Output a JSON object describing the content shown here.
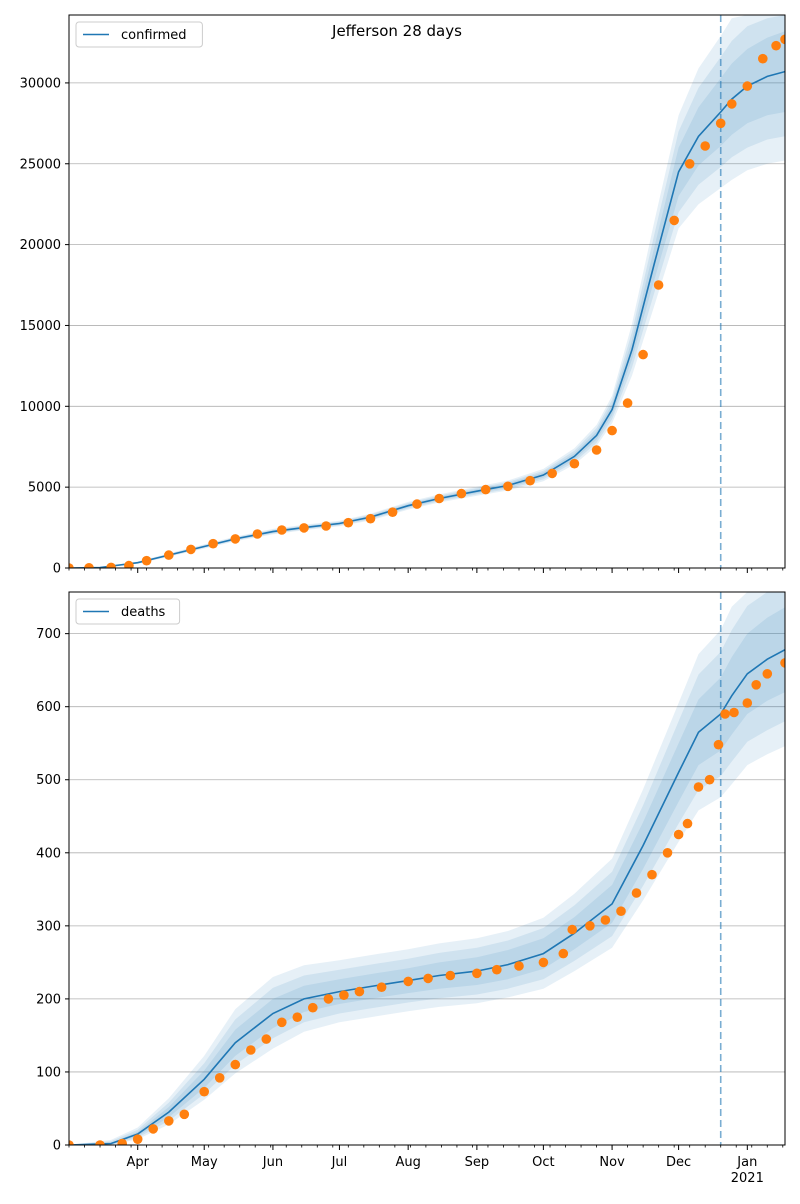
{
  "figure": {
    "title": "Jefferson 28 days"
  },
  "style": {
    "model_color": "#1f77b4",
    "observed_color": "#ff7f0e",
    "band_color": "#1f77b4",
    "forecast_line_color": "#1f77b4",
    "grid_color": "#b0b0b0"
  },
  "chart_data": [
    {
      "type": "line",
      "name": "confirmed",
      "legend": "confirmed",
      "legend_placement": "top-left",
      "ylim": [
        0,
        34200
      ],
      "yticks": [
        0,
        5000,
        10000,
        15000,
        20000,
        25000,
        30000
      ],
      "ytick_labels": [
        "0",
        "5000",
        "10000",
        "15000",
        "20000",
        "25000",
        "30000"
      ],
      "grid": "y",
      "forecast_start": "2020-12-20",
      "model": {
        "x": [
          "2020-03-01",
          "2020-03-15",
          "2020-04-01",
          "2020-04-15",
          "2020-05-01",
          "2020-05-15",
          "2020-06-01",
          "2020-06-15",
          "2020-07-01",
          "2020-07-15",
          "2020-08-01",
          "2020-08-15",
          "2020-09-01",
          "2020-09-15",
          "2020-10-01",
          "2020-10-15",
          "2020-10-25",
          "2020-11-01",
          "2020-11-10",
          "2020-11-20",
          "2020-12-01",
          "2020-12-10",
          "2020-12-20",
          "2020-12-25",
          "2021-01-01",
          "2021-01-10",
          "2021-01-18"
        ],
        "y": [
          0,
          30,
          330,
          800,
          1330,
          1800,
          2250,
          2500,
          2750,
          3150,
          3850,
          4300,
          4750,
          5100,
          5750,
          6900,
          8200,
          9800,
          13500,
          18800,
          24500,
          26700,
          28200,
          29000,
          29800,
          30400,
          30700
        ],
        "bands": [
          {
            "lower": [
              0,
              25,
              300,
              760,
              1280,
              1740,
              2180,
              2430,
              2680,
              3060,
              3750,
              4190,
              4630,
              4970,
              5590,
              6700,
              7950,
              9450,
              12900,
              17800,
              23000,
              24900,
              26100,
              26800,
              27500,
              28000,
              28200
            ],
            "upper": [
              0,
              35,
              360,
              840,
              1380,
              1860,
              2320,
              2570,
              2820,
              3240,
              3950,
              4410,
              4870,
              5230,
              5910,
              7100,
              8450,
              10150,
              14100,
              19800,
              26000,
              28500,
              30300,
              31200,
              32100,
              32800,
              33200
            ]
          },
          {
            "lower": [
              0,
              22,
              280,
              730,
              1240,
              1700,
              2130,
              2380,
              2630,
              3000,
              3680,
              4120,
              4550,
              4880,
              5480,
              6550,
              7750,
              9200,
              12400,
              17000,
              22000,
              23700,
              24800,
              25400,
              26000,
              26500,
              26700
            ],
            "upper": [
              0,
              38,
              380,
              870,
              1420,
              1900,
              2370,
              2620,
              2870,
              3300,
              4020,
              4480,
              4950,
              5320,
              6020,
              7250,
              8650,
              10400,
              14600,
              20600,
              27000,
              29700,
              31600,
              32600,
              33500,
              34000,
              34200
            ]
          },
          {
            "lower": [
              0,
              20,
              260,
              700,
              1200,
              1660,
              2080,
              2330,
              2580,
              2940,
              3610,
              4050,
              4470,
              4790,
              5370,
              6400,
              7550,
              8950,
              11900,
              16200,
              21000,
              22500,
              23500,
              24000,
              24600,
              25000,
              25200
            ],
            "upper": [
              0,
              40,
              400,
              900,
              1460,
              1940,
              2420,
              2670,
              2920,
              3360,
              4090,
              4550,
              5030,
              5410,
              6130,
              7400,
              8850,
              10650,
              15100,
              21400,
              28000,
              30900,
              32900,
              34000,
              34200,
              34200,
              34200
            ]
          }
        ]
      },
      "observed": {
        "x": [
          "2020-03-01",
          "2020-03-10",
          "2020-03-20",
          "2020-03-28",
          "2020-04-05",
          "2020-04-15",
          "2020-04-25",
          "2020-05-05",
          "2020-05-15",
          "2020-05-25",
          "2020-06-05",
          "2020-06-15",
          "2020-06-25",
          "2020-07-05",
          "2020-07-15",
          "2020-07-25",
          "2020-08-05",
          "2020-08-15",
          "2020-08-25",
          "2020-09-05",
          "2020-09-15",
          "2020-09-25",
          "2020-10-05",
          "2020-10-15",
          "2020-10-25",
          "2020-11-01",
          "2020-11-08",
          "2020-11-15",
          "2020-11-22",
          "2020-11-29",
          "2020-12-06",
          "2020-12-13",
          "2020-12-20",
          "2020-12-25",
          "2021-01-01",
          "2021-01-08",
          "2021-01-14",
          "2021-01-18"
        ],
        "y": [
          0,
          10,
          40,
          150,
          450,
          800,
          1150,
          1500,
          1800,
          2100,
          2350,
          2480,
          2600,
          2800,
          3050,
          3450,
          3950,
          4300,
          4600,
          4850,
          5050,
          5400,
          5850,
          6450,
          7300,
          8500,
          10200,
          13200,
          17500,
          21500,
          25000,
          26100,
          27500,
          28700,
          29800,
          31500,
          32300,
          32700
        ]
      }
    },
    {
      "type": "line",
      "name": "deaths",
      "legend": "deaths",
      "legend_placement": "top-left",
      "ylim": [
        0,
        757
      ],
      "yticks": [
        0,
        100,
        200,
        300,
        400,
        500,
        600,
        700
      ],
      "ytick_labels": [
        "0",
        "100",
        "200",
        "300",
        "400",
        "500",
        "600",
        "700"
      ],
      "grid": "y",
      "forecast_start": "2020-12-20",
      "xtick_labels": [
        {
          "date": "2020-04-01",
          "label": "Apr"
        },
        {
          "date": "2020-05-01",
          "label": "May"
        },
        {
          "date": "2020-06-01",
          "label": "Jun"
        },
        {
          "date": "2020-07-01",
          "label": "Jul"
        },
        {
          "date": "2020-08-01",
          "label": "Aug"
        },
        {
          "date": "2020-09-01",
          "label": "Sep"
        },
        {
          "date": "2020-10-01",
          "label": "Oct"
        },
        {
          "date": "2020-11-01",
          "label": "Nov"
        },
        {
          "date": "2020-12-01",
          "label": "Dec"
        },
        {
          "date": "2021-01-01",
          "label": "Jan"
        }
      ],
      "year_label": {
        "date": "2021-01-01",
        "label": "2021"
      },
      "model": {
        "x": [
          "2020-03-01",
          "2020-03-20",
          "2020-04-01",
          "2020-04-15",
          "2020-05-01",
          "2020-05-15",
          "2020-06-01",
          "2020-06-15",
          "2020-07-01",
          "2020-07-15",
          "2020-08-01",
          "2020-08-15",
          "2020-09-01",
          "2020-09-15",
          "2020-10-01",
          "2020-10-15",
          "2020-11-01",
          "2020-11-15",
          "2020-12-01",
          "2020-12-10",
          "2020-12-20",
          "2020-12-25",
          "2021-01-01",
          "2021-01-10",
          "2021-01-18"
        ],
        "y": [
          0,
          2,
          15,
          45,
          90,
          140,
          180,
          200,
          210,
          217,
          225,
          232,
          238,
          247,
          262,
          290,
          330,
          410,
          510,
          565,
          590,
          615,
          645,
          665,
          678
        ],
        "bands": [
          {
            "lower": [
              0,
              1,
              12,
              38,
              78,
              122,
              160,
              182,
              193,
              200,
              208,
              214,
              219,
              227,
              241,
              268,
              304,
              378,
              470,
              520,
              540,
              562,
              590,
              608,
              620
            ],
            "upper": [
              0,
              3,
              18,
              52,
              102,
              158,
              200,
              218,
              227,
              234,
              242,
              250,
              257,
              267,
              283,
              312,
              356,
              442,
              550,
              610,
              640,
              668,
              700,
              722,
              736
            ]
          },
          {
            "lower": [
              0,
              0,
              10,
              33,
              70,
              110,
              146,
              168,
              180,
              187,
              195,
              201,
              206,
              214,
              227,
              252,
              286,
              355,
              440,
              486,
              505,
              525,
              552,
              568,
              580
            ],
            "upper": [
              0,
              5,
              21,
              58,
              112,
              172,
              215,
              232,
              240,
              247,
              255,
              263,
              270,
              280,
              297,
              328,
              374,
              465,
              580,
              644,
              675,
              705,
              738,
              757,
              757
            ]
          },
          {
            "lower": [
              0,
              0,
              8,
              28,
              62,
              98,
              132,
              155,
              168,
              175,
              183,
              189,
              194,
              202,
              214,
              238,
              270,
              335,
              415,
              458,
              476,
              494,
              520,
              535,
              546
            ],
            "upper": [
              0,
              7,
              24,
              64,
              122,
              186,
              230,
              246,
              253,
              260,
              268,
              276,
              283,
              293,
              311,
              344,
              392,
              487,
              605,
              672,
              705,
              737,
              757,
              757,
              757
            ]
          }
        ]
      },
      "observed": {
        "x": [
          "2020-03-01",
          "2020-03-15",
          "2020-03-25",
          "2020-04-01",
          "2020-04-08",
          "2020-04-15",
          "2020-04-22",
          "2020-05-01",
          "2020-05-08",
          "2020-05-15",
          "2020-05-22",
          "2020-05-29",
          "2020-06-05",
          "2020-06-12",
          "2020-06-19",
          "2020-06-26",
          "2020-07-03",
          "2020-07-10",
          "2020-07-20",
          "2020-08-01",
          "2020-08-10",
          "2020-08-20",
          "2020-09-01",
          "2020-09-10",
          "2020-09-20",
          "2020-10-01",
          "2020-10-10",
          "2020-10-14",
          "2020-10-22",
          "2020-10-29",
          "2020-11-05",
          "2020-11-12",
          "2020-11-19",
          "2020-11-26",
          "2020-12-01",
          "2020-12-05",
          "2020-12-10",
          "2020-12-15",
          "2020-12-19",
          "2020-12-22",
          "2020-12-26",
          "2021-01-01",
          "2021-01-05",
          "2021-01-10",
          "2021-01-18"
        ],
        "y": [
          0,
          0,
          2,
          8,
          22,
          33,
          42,
          73,
          92,
          110,
          130,
          145,
          168,
          175,
          188,
          200,
          205,
          210,
          216,
          224,
          228,
          232,
          235,
          240,
          245,
          250,
          262,
          295,
          300,
          308,
          320,
          345,
          370,
          400,
          425,
          440,
          490,
          500,
          548,
          590,
          592,
          605,
          630,
          645,
          660
        ]
      }
    }
  ]
}
